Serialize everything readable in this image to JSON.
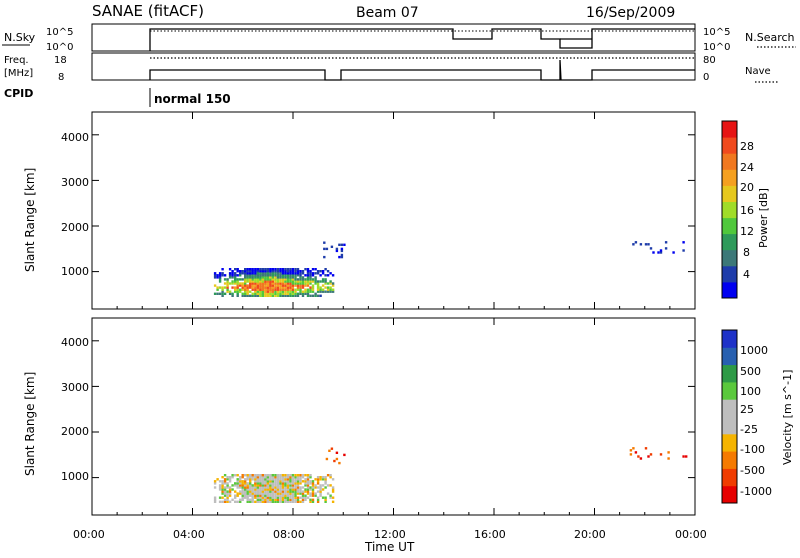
{
  "header": {
    "station": "SANAE (fitACF)",
    "beam": "Beam 07",
    "date": "16/Sep/2009"
  },
  "summary": {
    "nsky_label": "N.Sky",
    "nsky_ticks": [
      "10^5",
      "10^0"
    ],
    "nsearch_label": "N.Search",
    "nsearch_ticks": [
      "10^5",
      "10^0"
    ],
    "freq_label_1": "Freq.",
    "freq_label_2": "[MHz]",
    "freq_ticks": [
      "18",
      "8"
    ],
    "nave_label": "Nave",
    "nave_ticks": [
      "80",
      "0"
    ],
    "cpid_label": "CPID",
    "cpid_value": "normal 150"
  },
  "colors": {
    "power": [
      "#0000f0",
      "#1e3caa",
      "#3c7878",
      "#2e9a5a",
      "#50c83c",
      "#a0dc28",
      "#e6c81e",
      "#f5a020",
      "#f07820",
      "#f04a1e",
      "#e61414"
    ],
    "velocity": [
      "#e60000",
      "#f03c00",
      "#f57a00",
      "#f5b400",
      "#bebebe",
      "#bebebe",
      "#5ac83c",
      "#2e9a46",
      "#2860b0",
      "#1e32c8"
    ]
  },
  "chart_data": [
    {
      "type": "heatmap",
      "name": "power",
      "xlabel": "",
      "ylabel": "Slant Range [km]",
      "xlim": [
        0,
        24
      ],
      "ylim": [
        180,
        4500
      ],
      "yticks": [
        "1000",
        "2000",
        "3000",
        "4000"
      ],
      "colorbar_label": "Power [dB]",
      "colorbar_ticks": [
        "4",
        "8",
        "12",
        "16",
        "20",
        "24",
        "28"
      ],
      "regions": [
        {
          "t0": 4.85,
          "t1": 9.55,
          "r0": 450,
          "r1": 1050,
          "level": "core"
        },
        {
          "t0": 9.2,
          "t1": 10.0,
          "r0": 1300,
          "r1": 1650,
          "level": "low"
        },
        {
          "t0": 21.4,
          "t1": 23.7,
          "r0": 1400,
          "r1": 1650,
          "level": "low"
        }
      ]
    },
    {
      "type": "heatmap",
      "name": "velocity",
      "xlabel": "Time UT",
      "ylabel": "Slant Range [km]",
      "xlim": [
        0,
        24
      ],
      "ylim": [
        180,
        4500
      ],
      "yticks": [
        "1000",
        "2000",
        "3000",
        "4000"
      ],
      "xticks": [
        "00:00",
        "04:00",
        "08:00",
        "12:00",
        "16:00",
        "20:00",
        "00:00"
      ],
      "colorbar_label": "Velocity [m s^-1]",
      "colorbar_ticks": [
        "1000",
        "500",
        "100",
        "25",
        "-25",
        "-100",
        "-500",
        "-1000"
      ],
      "regions": [
        {
          "t0": 4.85,
          "t1": 9.55,
          "r0": 450,
          "r1": 1050,
          "level": "slow"
        },
        {
          "t0": 9.2,
          "t1": 10.0,
          "r0": 1300,
          "r1": 1650,
          "level": "away"
        },
        {
          "t0": 21.4,
          "t1": 23.7,
          "r0": 1400,
          "r1": 1650,
          "level": "away"
        }
      ]
    }
  ]
}
